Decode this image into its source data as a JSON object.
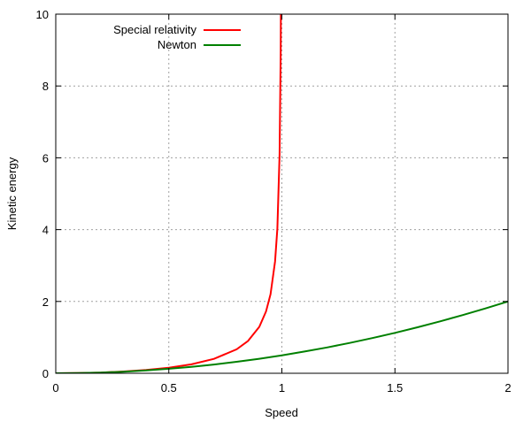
{
  "chart_data": {
    "type": "line",
    "title": "",
    "xlabel": "Speed",
    "ylabel": "Kinetic energy",
    "xlim": [
      0,
      2
    ],
    "ylim": [
      0,
      10
    ],
    "xticks": [
      "0",
      "0.5",
      "1",
      "1.5",
      "2"
    ],
    "xtick_values": [
      0,
      0.5,
      1,
      1.5,
      2
    ],
    "yticks": [
      "0",
      "2",
      "4",
      "6",
      "8",
      "10"
    ],
    "ytick_values": [
      0,
      2,
      4,
      6,
      8,
      10
    ],
    "grid": true,
    "legend_position": "top-left",
    "series": [
      {
        "name": "Special relativity",
        "color": "#ff0000",
        "x": [
          0,
          0.1,
          0.2,
          0.3,
          0.4,
          0.5,
          0.6,
          0.7,
          0.8,
          0.85,
          0.9,
          0.93,
          0.95,
          0.97,
          0.98,
          0.99,
          0.995,
          0.9975
        ],
        "y": [
          0,
          0.005,
          0.0206,
          0.0483,
          0.0911,
          0.1547,
          0.25,
          0.4003,
          0.6667,
          0.8983,
          1.2942,
          1.7206,
          2.2026,
          3.1134,
          4.0252,
          6.0888,
          9.0125,
          13.15
        ]
      },
      {
        "name": "Newton",
        "color": "#008000",
        "x": [
          0,
          0.1,
          0.2,
          0.3,
          0.4,
          0.5,
          0.6,
          0.7,
          0.8,
          0.9,
          1.0,
          1.1,
          1.2,
          1.3,
          1.4,
          1.5,
          1.6,
          1.7,
          1.8,
          1.9,
          2.0
        ],
        "y": [
          0,
          0.005,
          0.02,
          0.045,
          0.08,
          0.125,
          0.18,
          0.245,
          0.32,
          0.405,
          0.5,
          0.605,
          0.72,
          0.845,
          0.98,
          1.125,
          1.28,
          1.445,
          1.62,
          1.805,
          2.0
        ]
      }
    ]
  }
}
